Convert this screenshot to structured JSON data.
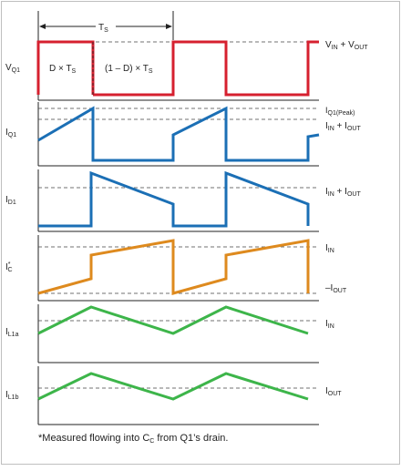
{
  "period_label": {
    "main": "T",
    "sub": "S"
  },
  "region_labels": [
    {
      "text": "D × T",
      "sub": "S"
    },
    {
      "text": "(1 – D) × T",
      "sub": "S"
    }
  ],
  "rows": [
    {
      "id": "vq1",
      "label_main": "V",
      "label_sub": "Q1",
      "color": "#d6202f",
      "levels": [
        {
          "main": "V",
          "sub": "IN",
          "rest": " + V",
          "sub2": "OUT"
        }
      ]
    },
    {
      "id": "iq1",
      "label_main": "I",
      "label_sub": "Q1",
      "color": "#1b6fb5",
      "levels": [
        {
          "main": "I",
          "sub": "Q1(Peak)"
        },
        {
          "main": "I",
          "sub": "IN",
          "rest": " + I",
          "sub2": "OUT"
        }
      ]
    },
    {
      "id": "id1",
      "label_main": "I",
      "label_sub": "D1",
      "color": "#1b6fb5",
      "levels": [
        {
          "main": "I",
          "sub": "IN",
          "rest": " + I",
          "sub2": "OUT"
        }
      ]
    },
    {
      "id": "icc",
      "label_main": "I",
      "label_sup": "*",
      "label_sub": "C",
      "color": "#de8a1e",
      "levels": [
        {
          "main": "I",
          "sub": "IN"
        },
        {
          "main": "–I",
          "sub": "OUT"
        }
      ]
    },
    {
      "id": "il1a",
      "label_main": "I",
      "label_sub": "L1a",
      "color": "#3db54a",
      "levels": [
        {
          "main": "I",
          "sub": "IN"
        }
      ]
    },
    {
      "id": "il1b",
      "label_main": "I",
      "label_sub": "L1b",
      "color": "#3db54a",
      "levels": [
        {
          "main": "I",
          "sub": "OUT"
        }
      ]
    }
  ],
  "footnote": "*Measured flowing into C",
  "footnote_sub": "C",
  "footnote_rest": " from Q1’s drain."
}
